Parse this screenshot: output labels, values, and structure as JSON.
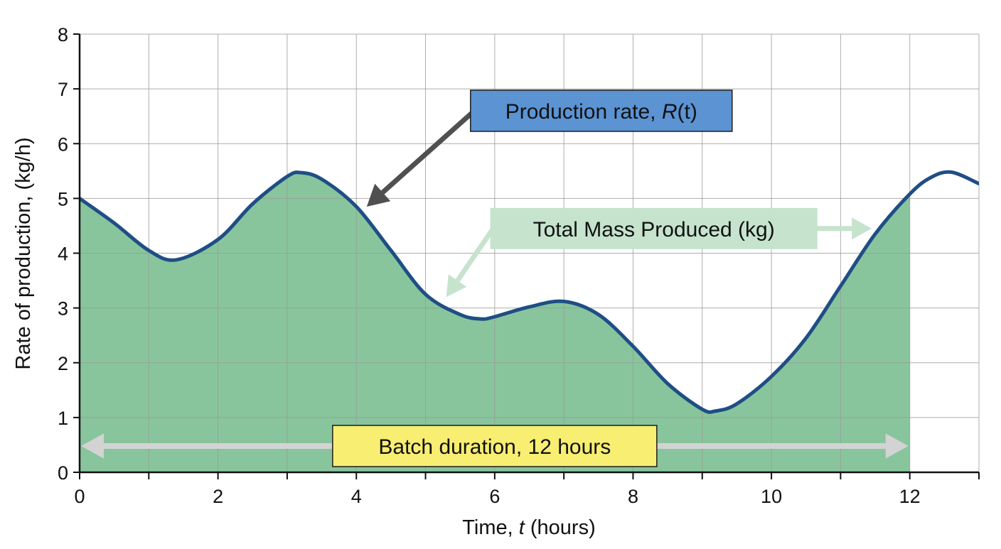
{
  "chart_data": {
    "type": "area",
    "xlabel_prefix": "Time, ",
    "xlabel_var": "t",
    "xlabel_suffix": " (hours)",
    "ylabel": "Rate of production, (kg/h)",
    "xlim": [
      0,
      13
    ],
    "ylim": [
      0,
      8
    ],
    "x_ticks": [
      0,
      2,
      4,
      6,
      8,
      10,
      12
    ],
    "x_minor_step": 1,
    "y_ticks": [
      0,
      1,
      2,
      3,
      4,
      5,
      6,
      7,
      8
    ],
    "grid": true,
    "fill_range": [
      0,
      12
    ],
    "series": [
      {
        "x": [
          0,
          0.5,
          1,
          1.4,
          2,
          2.5,
          3,
          3.2,
          3.5,
          4,
          4.5,
          5,
          5.5,
          5.8,
          6,
          6.5,
          7,
          7.5,
          8,
          8.5,
          9,
          9.2,
          9.5,
          10,
          10.5,
          11,
          11.5,
          12,
          12.3,
          12.6,
          13
        ],
        "y": [
          5.0,
          4.55,
          4.05,
          3.88,
          4.25,
          4.9,
          5.4,
          5.47,
          5.35,
          4.85,
          4.05,
          3.25,
          2.88,
          2.8,
          2.84,
          3.02,
          3.12,
          2.88,
          2.3,
          1.62,
          1.15,
          1.12,
          1.25,
          1.75,
          2.45,
          3.4,
          4.35,
          5.08,
          5.38,
          5.48,
          5.27
        ]
      }
    ],
    "colors": {
      "curve": "#1f4e85",
      "fill": "#88c59c",
      "grid": "#9a9a9a",
      "rate_box": "#5b93d3",
      "mass_box": "#c5e3cd",
      "batch_box": "#f7ee72",
      "rate_arrow": "#505050",
      "mass_arrow": "#c5e3cd",
      "batch_arrow": "#d3d3d3"
    },
    "annotations": {
      "rate_label_main": "Production rate, ",
      "rate_label_var": "R",
      "rate_label_tail": "(t)",
      "rate_box_at": [
        5.65,
        6.6
      ],
      "rate_arrow_to": [
        4.15,
        4.85
      ],
      "mass_label": "Total Mass Produced (kg)",
      "mass_box_at": [
        8.3,
        4.45
      ],
      "mass_arrow_to_left": [
        5.3,
        3.2
      ],
      "mass_arrow_to_right": [
        11.45,
        4.45
      ],
      "batch_label": "Batch duration, 12 hours",
      "batch_box_at": [
        6.0,
        0.48
      ],
      "batch_arrow_span": [
        0,
        12
      ],
      "batch_arrow_y": 0.48
    }
  }
}
